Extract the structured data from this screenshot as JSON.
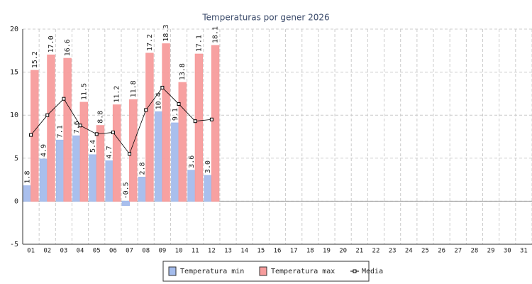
{
  "chart_data": {
    "type": "bar",
    "title": "Temperaturas por gener 2026",
    "categories": [
      "01",
      "02",
      "03",
      "04",
      "05",
      "06",
      "07",
      "08",
      "09",
      "10",
      "11",
      "12",
      "13",
      "14",
      "15",
      "16",
      "17",
      "18",
      "19",
      "20",
      "21",
      "22",
      "23",
      "24",
      "25",
      "26",
      "27",
      "28",
      "29",
      "30",
      "31"
    ],
    "series": [
      {
        "name": "Temperatura min",
        "color": "#a4bcec",
        "values": [
          1.8,
          4.9,
          7.1,
          7.6,
          5.4,
          4.7,
          -0.5,
          2.8,
          10.4,
          9.1,
          3.6,
          3.0,
          null,
          null,
          null,
          null,
          null,
          null,
          null,
          null,
          null,
          null,
          null,
          null,
          null,
          null,
          null,
          null,
          null,
          null,
          null
        ],
        "value_labels": [
          "1.8",
          "4.9",
          "7.1",
          "7.6",
          "5.4",
          "4.7",
          "-0.5",
          "2.8",
          "10.4",
          "9.1",
          "3.6",
          "3.0",
          null,
          null,
          null,
          null,
          null,
          null,
          null,
          null,
          null,
          null,
          null,
          null,
          null,
          null,
          null,
          null,
          null,
          null,
          null
        ]
      },
      {
        "name": "Temperatura max",
        "color": "#f79c9c",
        "values": [
          15.2,
          17.0,
          16.6,
          11.5,
          8.8,
          11.2,
          11.8,
          17.2,
          18.3,
          13.8,
          17.1,
          18.1,
          null,
          null,
          null,
          null,
          null,
          null,
          null,
          null,
          null,
          null,
          null,
          null,
          null,
          null,
          null,
          null,
          null,
          null,
          null
        ],
        "value_labels": [
          "15.2",
          "17.0",
          "16.6",
          "11.5",
          "8.8",
          "11.2",
          "11.8",
          "17.2",
          "18.3",
          "13.8",
          "17.1",
          "18.1",
          null,
          null,
          null,
          null,
          null,
          null,
          null,
          null,
          null,
          null,
          null,
          null,
          null,
          null,
          null,
          null,
          null,
          null,
          null
        ]
      },
      {
        "name": "Media",
        "type": "line",
        "color": "#000000",
        "values": [
          7.7,
          10.0,
          11.9,
          8.8,
          7.8,
          8.0,
          5.5,
          10.6,
          13.2,
          11.3,
          9.3,
          9.5,
          null,
          null,
          null,
          null,
          null,
          null,
          null,
          null,
          null,
          null,
          null,
          null,
          null,
          null,
          null,
          null,
          null,
          null,
          null
        ]
      }
    ],
    "ylim": [
      -5,
      20
    ],
    "yticks": [
      -5,
      0,
      5,
      10,
      15,
      20
    ],
    "grid": true
  }
}
